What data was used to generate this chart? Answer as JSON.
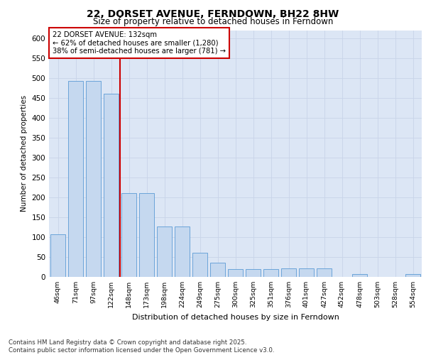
{
  "title": "22, DORSET AVENUE, FERNDOWN, BH22 8HW",
  "subtitle": "Size of property relative to detached houses in Ferndown",
  "xlabel": "Distribution of detached houses by size in Ferndown",
  "ylabel": "Number of detached properties",
  "categories": [
    "46sqm",
    "71sqm",
    "97sqm",
    "122sqm",
    "148sqm",
    "173sqm",
    "198sqm",
    "224sqm",
    "249sqm",
    "275sqm",
    "300sqm",
    "325sqm",
    "351sqm",
    "376sqm",
    "401sqm",
    "427sqm",
    "452sqm",
    "478sqm",
    "503sqm",
    "528sqm",
    "554sqm"
  ],
  "values": [
    107,
    492,
    492,
    460,
    210,
    210,
    126,
    126,
    60,
    35,
    20,
    20,
    20,
    22,
    22,
    22,
    0,
    8,
    0,
    0,
    8
  ],
  "bar_color": "#c5d8ef",
  "bar_edge_color": "#5b9bd5",
  "vline_color": "#cc0000",
  "annotation_text": "22 DORSET AVENUE: 132sqm\n← 62% of detached houses are smaller (1,280)\n38% of semi-detached houses are larger (781) →",
  "annotation_box_color": "#ffffff",
  "annotation_box_edge": "#cc0000",
  "grid_color": "#c8d4e8",
  "background_color": "#dce6f5",
  "ylim": [
    0,
    620
  ],
  "yticks": [
    0,
    50,
    100,
    150,
    200,
    250,
    300,
    350,
    400,
    450,
    500,
    550,
    600
  ],
  "footer": "Contains HM Land Registry data © Crown copyright and database right 2025.\nContains public sector information licensed under the Open Government Licence v3.0."
}
